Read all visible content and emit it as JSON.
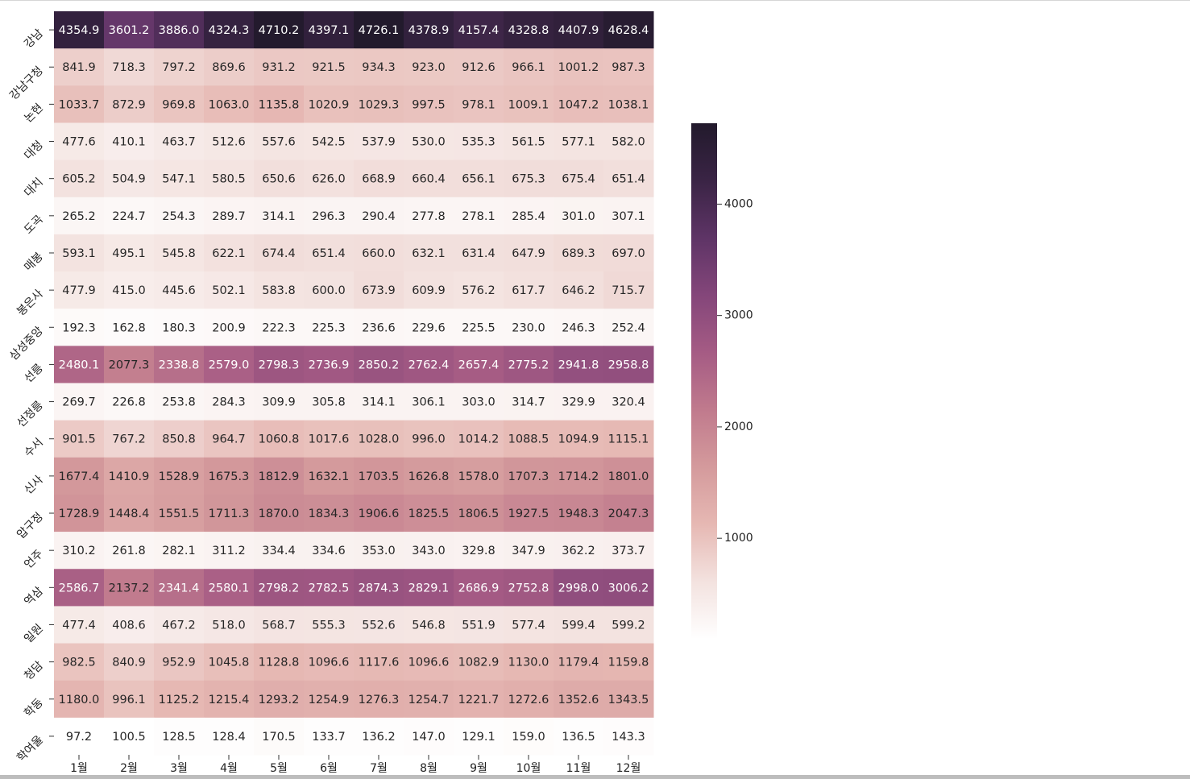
{
  "chart_data": {
    "type": "heatmap",
    "title": "",
    "xlabel": "",
    "ylabel": "",
    "x_categories": [
      "1월",
      "2월",
      "3월",
      "4월",
      "5월",
      "6월",
      "7월",
      "8월",
      "9월",
      "10월",
      "11월",
      "12월"
    ],
    "y_categories": [
      "강남",
      "강남구청",
      "논현",
      "대청",
      "대치",
      "도곡",
      "매봉",
      "봉은사",
      "삼성중앙",
      "선릉",
      "선정릉",
      "수서",
      "신사",
      "압구정",
      "언주",
      "역삼",
      "일원",
      "청담",
      "학동",
      "학여울"
    ],
    "values": [
      [
        4354.9,
        3601.2,
        3886.0,
        4324.3,
        4710.2,
        4397.1,
        4726.1,
        4378.9,
        4157.4,
        4328.8,
        4407.9,
        4628.4
      ],
      [
        841.9,
        718.3,
        797.2,
        869.6,
        931.2,
        921.5,
        934.3,
        923.0,
        912.6,
        966.1,
        1001.2,
        987.3
      ],
      [
        1033.7,
        872.9,
        969.8,
        1063.0,
        1135.8,
        1020.9,
        1029.3,
        997.5,
        978.1,
        1009.1,
        1047.2,
        1038.1
      ],
      [
        477.6,
        410.1,
        463.7,
        512.6,
        557.6,
        542.5,
        537.9,
        530.0,
        535.3,
        561.5,
        577.1,
        582.0
      ],
      [
        605.2,
        504.9,
        547.1,
        580.5,
        650.6,
        626.0,
        668.9,
        660.4,
        656.1,
        675.3,
        675.4,
        651.4
      ],
      [
        265.2,
        224.7,
        254.3,
        289.7,
        314.1,
        296.3,
        290.4,
        277.8,
        278.1,
        285.4,
        301.0,
        307.1
      ],
      [
        593.1,
        495.1,
        545.8,
        622.1,
        674.4,
        651.4,
        660.0,
        632.1,
        631.4,
        647.9,
        689.3,
        697.0
      ],
      [
        477.9,
        415.0,
        445.6,
        502.1,
        583.8,
        600.0,
        673.9,
        609.9,
        576.2,
        617.7,
        646.2,
        715.7
      ],
      [
        192.3,
        162.8,
        180.3,
        200.9,
        222.3,
        225.3,
        236.6,
        229.6,
        225.5,
        230.0,
        246.3,
        252.4
      ],
      [
        2480.1,
        2077.3,
        2338.8,
        2579.0,
        2798.3,
        2736.9,
        2850.2,
        2762.4,
        2657.4,
        2775.2,
        2941.8,
        2958.8
      ],
      [
        269.7,
        226.8,
        253.8,
        284.3,
        309.9,
        305.8,
        314.1,
        306.1,
        303.0,
        314.7,
        329.9,
        320.4
      ],
      [
        901.5,
        767.2,
        850.8,
        964.7,
        1060.8,
        1017.6,
        1028.0,
        996.0,
        1014.2,
        1088.5,
        1094.9,
        1115.1
      ],
      [
        1677.4,
        1410.9,
        1528.9,
        1675.3,
        1812.9,
        1632.1,
        1703.5,
        1626.8,
        1578.0,
        1707.3,
        1714.2,
        1801.0
      ],
      [
        1728.9,
        1448.4,
        1551.5,
        1711.3,
        1870.0,
        1834.3,
        1906.6,
        1825.5,
        1806.5,
        1927.5,
        1948.3,
        2047.3
      ],
      [
        310.2,
        261.8,
        282.1,
        311.2,
        334.4,
        334.6,
        353.0,
        343.0,
        329.8,
        347.9,
        362.2,
        373.7
      ],
      [
        2586.7,
        2137.2,
        2341.4,
        2580.1,
        2798.2,
        2782.5,
        2874.3,
        2829.1,
        2686.9,
        2752.8,
        2998.0,
        3006.2
      ],
      [
        477.4,
        408.6,
        467.2,
        518.0,
        568.7,
        555.3,
        552.6,
        546.8,
        551.9,
        577.4,
        599.4,
        599.2
      ],
      [
        982.5,
        840.9,
        952.9,
        1045.8,
        1128.8,
        1096.6,
        1117.6,
        1096.6,
        1082.9,
        1130.0,
        1179.4,
        1159.8
      ],
      [
        1180.0,
        996.1,
        1125.2,
        1215.4,
        1293.2,
        1254.9,
        1276.3,
        1254.7,
        1221.7,
        1272.6,
        1352.6,
        1343.5
      ],
      [
        97.2,
        100.5,
        128.5,
        128.4,
        170.5,
        133.7,
        136.2,
        147.0,
        129.1,
        159.0,
        136.5,
        143.3
      ]
    ],
    "value_format": "0.1f",
    "colorbar": {
      "min": 97.2,
      "max": 4726.1,
      "ticks": [
        1000,
        2000,
        3000,
        4000
      ],
      "tick_labels": [
        "1000",
        "2000",
        "3000",
        "4000"
      ]
    },
    "colormap": [
      "#ffffff",
      "#f3e2df",
      "#e6b8b3",
      "#d49a9c",
      "#c07a8d",
      "#a55b84",
      "#84467a",
      "#5e3466",
      "#3a2445",
      "#221a2c"
    ],
    "grid": false,
    "legend": "colorbar-right"
  }
}
